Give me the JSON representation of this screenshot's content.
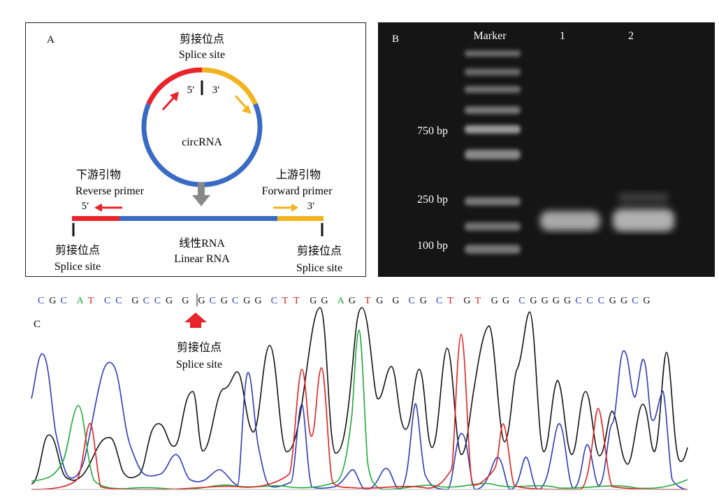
{
  "panel_a": {
    "letter": "A",
    "top_label_zh": "剪接位点",
    "top_label_en": "Splice site",
    "five_prime": "5′",
    "three_prime": "3′",
    "circ_label": "circRNA",
    "reverse_primer_zh": "下游引物",
    "reverse_primer_en": "Reverse primer",
    "reverse_end": "5′",
    "forward_primer_zh": "上游引物",
    "forward_primer_en": "Forward primer",
    "forward_end": "3′",
    "linear_zh": "线性RNA",
    "linear_en": "Linear RNA",
    "left_splice_zh": "剪接位点",
    "left_splice_en": "Splice site",
    "right_splice_zh": "剪接位点",
    "right_splice_en": "Splice site",
    "colors": {
      "red": "#e8232a",
      "yellow": "#f2b320",
      "blue": "#3a6bc4"
    }
  },
  "panel_b": {
    "letter": "B",
    "lane_marker": "Marker",
    "lane_1": "1",
    "lane_2": "2",
    "size_750": "750 bp",
    "size_250": "250 bp",
    "size_100": "100 bp"
  },
  "panel_c": {
    "letter": "C",
    "sequence_groups": [
      {
        "t": "C",
        "c": "blue"
      },
      {
        "t": "G",
        "c": "black"
      },
      {
        "t": "C",
        "c": "blue"
      },
      {
        "t": "A",
        "c": "green"
      },
      {
        "t": "T",
        "c": "red"
      },
      {
        "t": "C",
        "c": "blue"
      },
      {
        "t": "C",
        "c": "blue"
      },
      {
        "t": "G",
        "c": "black"
      },
      {
        "t": "C",
        "c": "blue"
      },
      {
        "t": "C",
        "c": "blue"
      },
      {
        "t": "G",
        "c": "black"
      },
      {
        "t": "G",
        "c": "black"
      },
      {
        "t": "G",
        "c": "black"
      },
      {
        "t": "C",
        "c": "blue"
      },
      {
        "t": "G",
        "c": "black"
      },
      {
        "t": "C",
        "c": "blue"
      },
      {
        "t": "G",
        "c": "black"
      },
      {
        "t": "G",
        "c": "black"
      },
      {
        "t": "C",
        "c": "blue"
      },
      {
        "t": "T",
        "c": "red"
      },
      {
        "t": "T",
        "c": "red"
      },
      {
        "t": "G",
        "c": "black"
      },
      {
        "t": "G",
        "c": "black"
      },
      {
        "t": "A",
        "c": "green"
      },
      {
        "t": "G",
        "c": "black"
      },
      {
        "t": "T",
        "c": "red"
      },
      {
        "t": "G",
        "c": "black"
      },
      {
        "t": "G",
        "c": "black"
      },
      {
        "t": "C",
        "c": "blue"
      },
      {
        "t": "G",
        "c": "black"
      },
      {
        "t": "C",
        "c": "blue"
      },
      {
        "t": "T",
        "c": "red"
      },
      {
        "t": "G",
        "c": "black"
      },
      {
        "t": "T",
        "c": "red"
      },
      {
        "t": "G",
        "c": "black"
      },
      {
        "t": "G",
        "c": "black"
      },
      {
        "t": "C",
        "c": "blue"
      },
      {
        "t": "G",
        "c": "black"
      },
      {
        "t": "G",
        "c": "black"
      },
      {
        "t": "G",
        "c": "black"
      },
      {
        "t": "G",
        "c": "black"
      },
      {
        "t": "C",
        "c": "blue"
      },
      {
        "t": "C",
        "c": "blue"
      },
      {
        "t": "C",
        "c": "blue"
      },
      {
        "t": "G",
        "c": "black"
      },
      {
        "t": "G",
        "c": "black"
      },
      {
        "t": "C",
        "c": "blue"
      },
      {
        "t": "G",
        "c": "black"
      }
    ],
    "splice_zh": "剪接位点",
    "splice_en": "Splice site",
    "colors": {
      "A": "#1faa3a",
      "C": "#2d3bb5",
      "G": "#111111",
      "T": "#e02020"
    }
  }
}
